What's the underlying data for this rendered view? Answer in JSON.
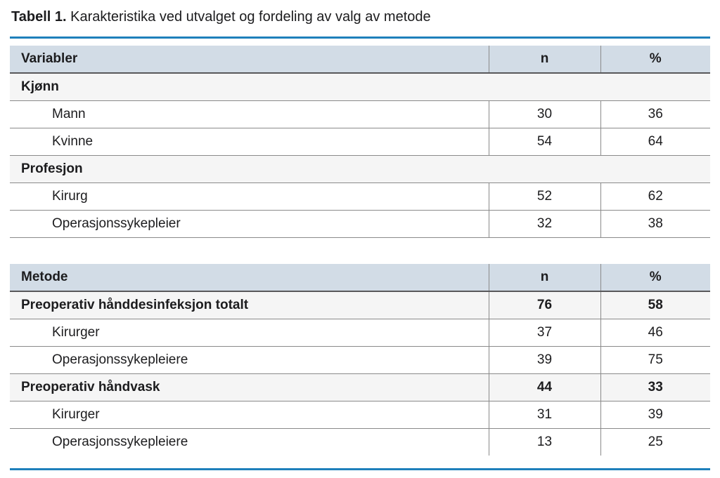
{
  "title": {
    "label": "Tabell 1.",
    "text": "Karakteristika ved utvalget og fordeling av valg av metode"
  },
  "colors": {
    "accent_rule": "#1e80bb",
    "header_bg": "#d2dce6",
    "section_row_bg": "#f5f5f5",
    "row_border": "#8a8a8a"
  },
  "tables": [
    {
      "columns": [
        "Variabler",
        "n",
        "%"
      ],
      "rows": [
        {
          "type": "section",
          "label": "Kjønn"
        },
        {
          "type": "sub",
          "label": "Mann",
          "n": "30",
          "pct": "36"
        },
        {
          "type": "sub",
          "label": "Kvinne",
          "n": "54",
          "pct": "64"
        },
        {
          "type": "section",
          "label": "Profesjon"
        },
        {
          "type": "sub",
          "label": "Kirurg",
          "n": "52",
          "pct": "62"
        },
        {
          "type": "sub",
          "label": "Operasjonssykepleier",
          "n": "32",
          "pct": "38"
        }
      ]
    },
    {
      "columns": [
        "Metode",
        "n",
        "%"
      ],
      "rows": [
        {
          "type": "bold",
          "label": "Preoperativ hånddesinfeksjon totalt",
          "n": "76",
          "pct": "58"
        },
        {
          "type": "sub",
          "label": "Kirurger",
          "n": "37",
          "pct": "46"
        },
        {
          "type": "sub",
          "label": "Operasjonssykepleiere",
          "n": "39",
          "pct": "75"
        },
        {
          "type": "bold",
          "label": "Preoperativ håndvask",
          "n": "44",
          "pct": "33"
        },
        {
          "type": "sub",
          "label": "Kirurger",
          "n": "31",
          "pct": "39"
        },
        {
          "type": "sub",
          "label": "Operasjonssykepleiere",
          "n": "13",
          "pct": "25"
        }
      ]
    }
  ]
}
